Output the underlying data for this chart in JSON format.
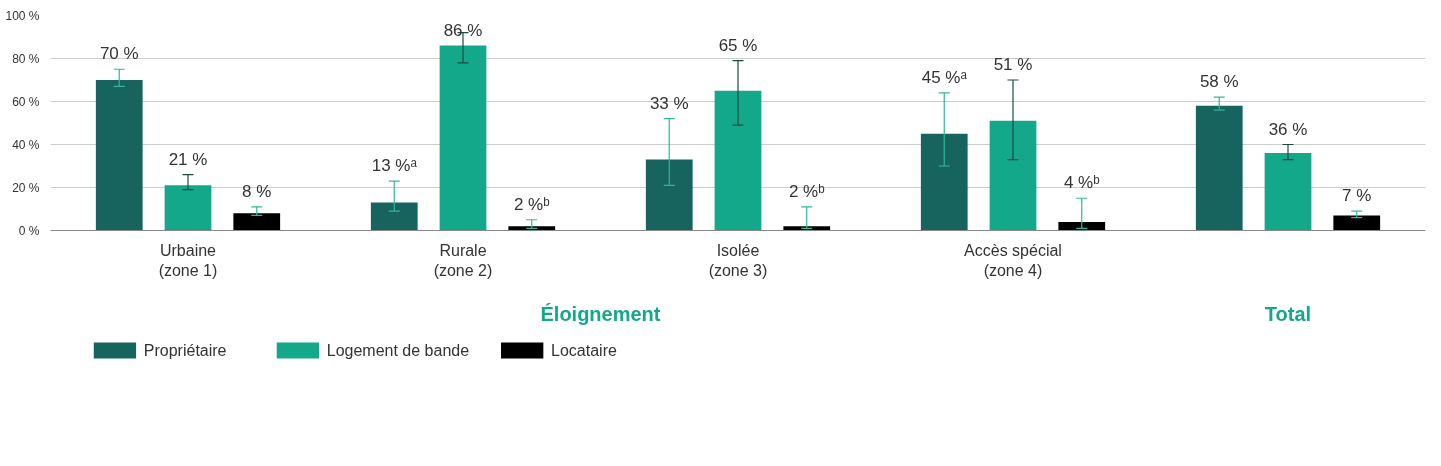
{
  "chart_data": {
    "type": "bar",
    "categories": [
      "Urbaine\n(zone 1)",
      "Rurale\n(zone 2)",
      "Isolée\n(zone 3)",
      "Accès spécial\n(zone 4)",
      null
    ],
    "series": [
      {
        "name": "Propriétaire",
        "color": "#17645f",
        "values": [
          70,
          13,
          33,
          45,
          58
        ],
        "errors": [
          [
            67,
            75
          ],
          [
            9,
            23
          ],
          [
            21,
            52
          ],
          [
            30,
            64
          ],
          [
            56,
            62
          ]
        ],
        "value_labels": [
          "70 %",
          "13 %ᵃ",
          "33 %",
          "45 %ᵃ",
          "58 %"
        ]
      },
      {
        "name": "Logement de bande",
        "color": "#14a88a",
        "values": [
          21,
          86,
          65,
          51,
          36
        ],
        "errors": [
          [
            19,
            26
          ],
          [
            78,
            92
          ],
          [
            49,
            79
          ],
          [
            33,
            70
          ],
          [
            33,
            40
          ]
        ],
        "value_labels": [
          "21 %",
          "86 %",
          "65 %",
          "51 %",
          "36 %"
        ]
      },
      {
        "name": "Locataire",
        "color": "#000000",
        "values": [
          8,
          2,
          2,
          4,
          7
        ],
        "errors": [
          [
            7,
            11
          ],
          [
            1,
            5
          ],
          [
            1,
            11
          ],
          [
            1,
            15
          ],
          [
            6,
            9
          ]
        ],
        "value_labels": [
          "8 %",
          "2 %ᵇ",
          "2 %ᵇ",
          "4 %ᵇ",
          "7 %"
        ]
      }
    ],
    "ylim": [
      0,
      100
    ],
    "yticks": [
      {
        "value": 0,
        "label": "0 %"
      },
      {
        "value": 20,
        "label": "20 %"
      },
      {
        "value": 40,
        "label": "40 %"
      },
      {
        "value": 60,
        "label": "60 %"
      },
      {
        "value": 80,
        "label": "80 %"
      },
      {
        "value": 100,
        "label": "100 %"
      }
    ],
    "annotations": [
      "Éloignement",
      "Total"
    ],
    "grid": "y",
    "legend": "bottom left"
  }
}
